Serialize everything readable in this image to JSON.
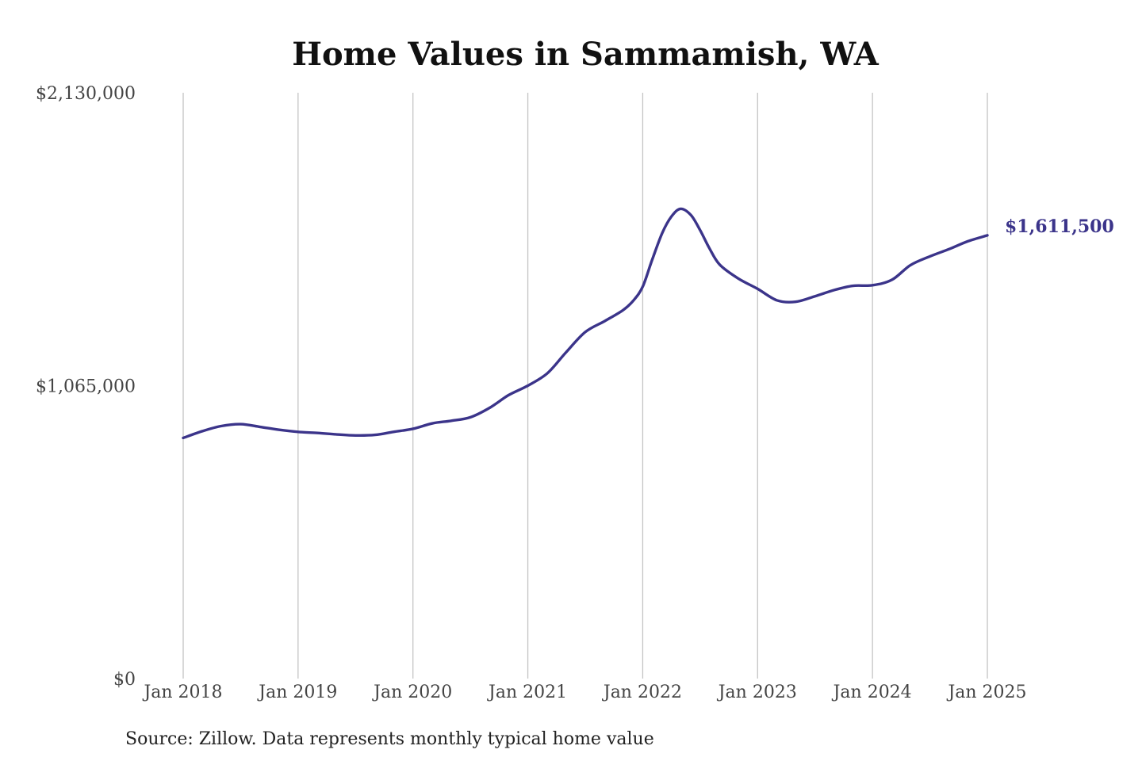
{
  "title": "Home Values in Sammamish, WA",
  "source": "Source: Zillow. Data represents monthly typical home value",
  "colors": {
    "line": "#3b348a",
    "grid": "#c4c4c4",
    "title": "#111111",
    "tick": "#444444"
  },
  "chart_data": {
    "type": "line",
    "title": "Home Values in Sammamish, WA",
    "xlabel": "",
    "ylabel": "",
    "ylim": [
      0,
      2130000
    ],
    "y_ticks": [
      {
        "value": 2130000,
        "label": "$2,130,000"
      },
      {
        "value": 1065000,
        "label": "$1,065,000"
      },
      {
        "value": 0,
        "label": "$0"
      }
    ],
    "x_ticks": [
      {
        "value": 2018,
        "label": "Jan 2018"
      },
      {
        "value": 2019,
        "label": "Jan 2019"
      },
      {
        "value": 2020,
        "label": "Jan 2020"
      },
      {
        "value": 2021,
        "label": "Jan 2021"
      },
      {
        "value": 2022,
        "label": "Jan 2022"
      },
      {
        "value": 2023,
        "label": "Jan 2023"
      },
      {
        "value": 2024,
        "label": "Jan 2024"
      },
      {
        "value": 2025,
        "label": "Jan 2025"
      }
    ],
    "xlim": [
      2018,
      2025
    ],
    "grid": "vertical",
    "end_label": "$1,611,500",
    "series": [
      {
        "x": [
          2018.0,
          2018.17,
          2018.33,
          2018.5,
          2018.67,
          2018.83,
          2019.0,
          2019.17,
          2019.33,
          2019.5,
          2019.67,
          2019.83,
          2020.0,
          2020.17,
          2020.33,
          2020.5,
          2020.67,
          2020.83,
          2021.0,
          2021.17,
          2021.33,
          2021.5,
          2021.67,
          2021.83,
          2021.92,
          2022.0,
          2022.08,
          2022.17,
          2022.25,
          2022.33,
          2022.42,
          2022.5,
          2022.58,
          2022.67,
          2022.83,
          2023.0,
          2023.17,
          2023.33,
          2023.5,
          2023.67,
          2023.83,
          2024.0,
          2024.17,
          2024.33,
          2024.5,
          2024.67,
          2024.83,
          2025.0
        ],
        "values": [
          875000,
          900000,
          918000,
          925000,
          915000,
          905000,
          897000,
          893000,
          888000,
          884000,
          886000,
          897000,
          908000,
          928000,
          937000,
          950000,
          985000,
          1030000,
          1065000,
          1110000,
          1185000,
          1260000,
          1300000,
          1340000,
          1375000,
          1425000,
          1520000,
          1620000,
          1680000,
          1708000,
          1685000,
          1630000,
          1565000,
          1505000,
          1455000,
          1417000,
          1375000,
          1370000,
          1390000,
          1413000,
          1428000,
          1430000,
          1450000,
          1503000,
          1535000,
          1562000,
          1590000,
          1611500
        ]
      }
    ]
  }
}
